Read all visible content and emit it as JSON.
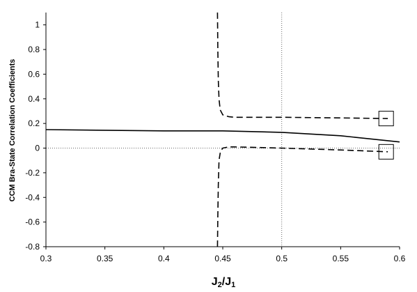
{
  "chart_data": {
    "type": "line",
    "xlabel": "J",
    "xlabel_sub_1": "2",
    "xlabel_sep": "/J",
    "xlabel_sub_2": "1",
    "ylabel": "CCM Bra-State Correlation Coefficients",
    "xlim": [
      0.3,
      0.6
    ],
    "ylim": [
      -0.8,
      1.1
    ],
    "x_ticks": [
      {
        "value": 0.3,
        "label": "0.3"
      },
      {
        "value": 0.35,
        "label": "0.35"
      },
      {
        "value": 0.4,
        "label": "0.4"
      },
      {
        "value": 0.45,
        "label": "0.45"
      },
      {
        "value": 0.5,
        "label": "0.5"
      },
      {
        "value": 0.55,
        "label": "0.55"
      },
      {
        "value": 0.6,
        "label": "0.6"
      }
    ],
    "y_ticks": [
      {
        "value": 1,
        "label": "1"
      },
      {
        "value": 0.8,
        "label": "0.8"
      },
      {
        "value": 0.6,
        "label": "0.6"
      },
      {
        "value": 0.4,
        "label": "0.4"
      },
      {
        "value": 0.2,
        "label": "0.2"
      },
      {
        "value": 0,
        "label": "0"
      },
      {
        "value": -0.2,
        "label": "-0.2"
      },
      {
        "value": -0.4,
        "label": "-0.4"
      },
      {
        "value": -0.6,
        "label": "-0.6"
      },
      {
        "value": -0.8,
        "label": "-0.8"
      }
    ],
    "grid": false,
    "reference_lines": [
      {
        "axis": "y",
        "value": 0,
        "style": "dotted"
      },
      {
        "axis": "x",
        "value": 0.5,
        "style": "dotted"
      }
    ],
    "series": [
      {
        "style": "solid",
        "color": "#000000",
        "x": [
          0.3,
          0.35,
          0.4,
          0.45,
          0.5,
          0.55,
          0.6
        ],
        "y": [
          0.15,
          0.145,
          0.14,
          0.14,
          0.128,
          0.1,
          0.05
        ]
      },
      {
        "style": "dashed",
        "color": "#000000",
        "x": [
          0.4455,
          0.4458,
          0.4462,
          0.4468,
          0.4478,
          0.45,
          0.455,
          0.46,
          0.5,
          0.55,
          0.59
        ],
        "y": [
          1.1,
          0.8,
          0.55,
          0.4,
          0.31,
          0.27,
          0.255,
          0.25,
          0.25,
          0.245,
          0.24
        ]
      },
      {
        "style": "dashed",
        "color": "#000000",
        "x": [
          0.4455,
          0.4458,
          0.4462,
          0.4468,
          0.448,
          0.45,
          0.455,
          0.46,
          0.5,
          0.55,
          0.59
        ],
        "y": [
          -0.8,
          -0.55,
          -0.3,
          -0.1,
          -0.03,
          0.0,
          0.01,
          0.01,
          0.0,
          -0.015,
          -0.03
        ]
      }
    ],
    "markers": [
      {
        "x": 0.5886,
        "y": 0.24,
        "style": "open-square"
      },
      {
        "x": 0.5886,
        "y": -0.03,
        "style": "open-square"
      }
    ]
  }
}
